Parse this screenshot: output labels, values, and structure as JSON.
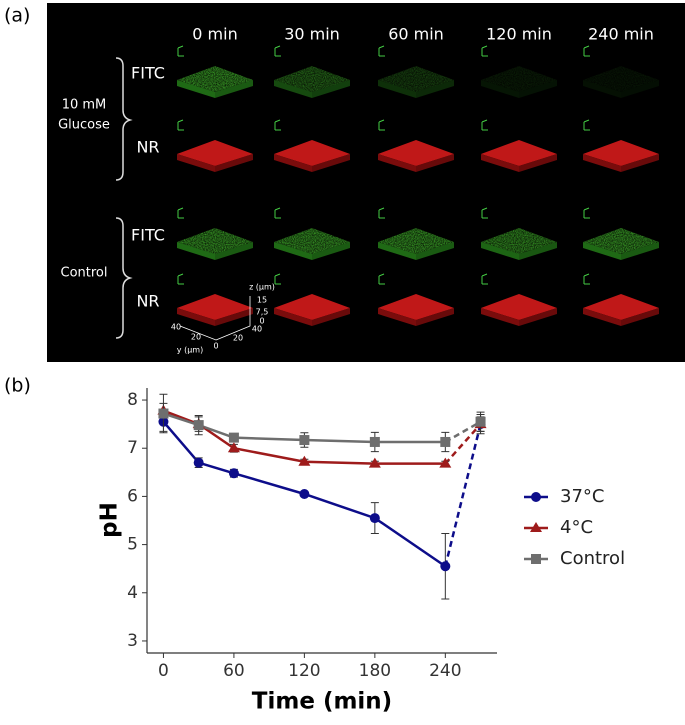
{
  "panel_a": {
    "label": "(a)",
    "columns": [
      "0 min",
      "30 min",
      "60 min",
      "120 min",
      "240 min"
    ],
    "groups": [
      {
        "label_lines": [
          "10 mM",
          "Glucose"
        ],
        "rows": [
          "FITC",
          "NR"
        ]
      },
      {
        "label_lines": [
          "Control"
        ],
        "rows": [
          "FITC",
          "NR"
        ]
      }
    ],
    "inset": {
      "z_label": "z (µm)",
      "z_ticks": [
        "15",
        "7,5",
        "0"
      ],
      "y_label": "y (µm)",
      "y_ticks": [
        "40",
        "20",
        "0"
      ],
      "x_ticks": [
        "20",
        "40"
      ]
    }
  },
  "chart_data": {
    "type": "line",
    "panel_label": "(b)",
    "x_label": "Time (min)",
    "y_label": "pH",
    "x": [
      0,
      30,
      60,
      120,
      180,
      240,
      270
    ],
    "xlim": [
      -14,
      284
    ],
    "xticks": [
      0,
      60,
      120,
      180,
      240
    ],
    "ylim": [
      2.75,
      8.25
    ],
    "yticks": [
      3,
      4,
      5,
      6,
      7,
      8
    ],
    "dashed_last_segment": true,
    "series": [
      {
        "name": "37°C",
        "color": "#0d0d8a",
        "marker": "circle",
        "values": [
          7.55,
          6.7,
          6.48,
          6.05,
          5.55,
          4.55,
          7.5
        ],
        "errors": [
          0.2,
          0.1,
          0.08,
          0.05,
          0.32,
          0.68,
          0.15
        ]
      },
      {
        "name": "4°C",
        "color": "#9e1b1b",
        "marker": "triangle",
        "values": [
          7.78,
          7.5,
          7.0,
          6.72,
          6.68,
          6.68,
          7.5
        ],
        "errors": [
          0.15,
          0.15,
          0.08,
          0.05,
          0.05,
          0.05,
          0.2
        ]
      },
      {
        "name": "Control",
        "color": "#6e6e6e",
        "marker": "square",
        "values": [
          7.72,
          7.48,
          7.22,
          7.17,
          7.13,
          7.13,
          7.55
        ],
        "errors": [
          0.4,
          0.2,
          0.08,
          0.15,
          0.2,
          0.2,
          0.2
        ]
      }
    ]
  }
}
